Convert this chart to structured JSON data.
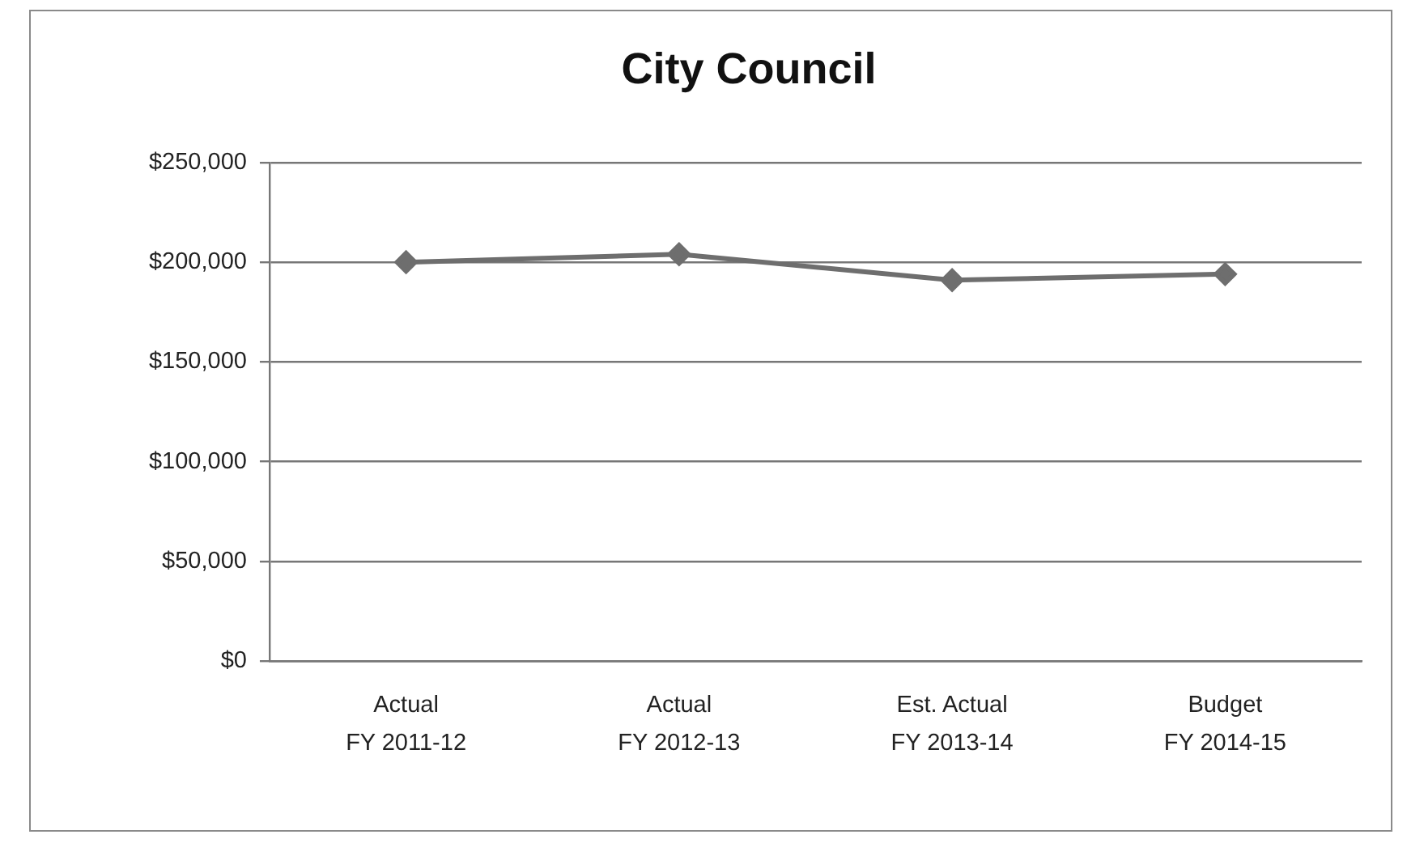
{
  "chart_data": {
    "type": "line",
    "title": "City Council",
    "categories": [
      "Actual\nFY 2011-12",
      "Actual\nFY 2012-13",
      "Est. Actual\nFY 2013-14",
      "Budget\nFY 2014-15"
    ],
    "series": [
      {
        "color": "#6e6e6e",
        "values": [
          200000,
          204000,
          191000,
          194000
        ]
      }
    ],
    "ylim": [
      0,
      250000
    ],
    "yticks": [
      {
        "value": 0,
        "label": "$0"
      },
      {
        "value": 50000,
        "label": "$50,000"
      },
      {
        "value": 100000,
        "label": "$100,000"
      },
      {
        "value": 150000,
        "label": "$150,000"
      },
      {
        "value": 200000,
        "label": "$200,000"
      },
      {
        "value": 250000,
        "label": "$250,000"
      }
    ],
    "grid": "y",
    "legend": false,
    "marker": "diamond",
    "line_style": "solid"
  }
}
